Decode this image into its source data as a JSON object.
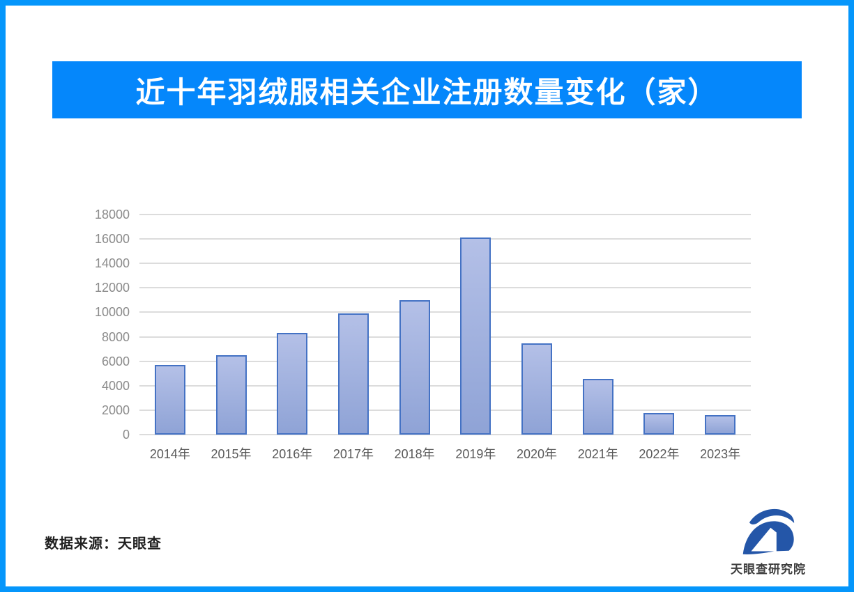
{
  "frame": {
    "border_color": "#0596fb"
  },
  "header": {
    "title": "近十年羽绒服相关企业注册数量变化（家）",
    "bg_color": "#0587fb",
    "text_color": "#ffffff"
  },
  "chart_data": {
    "type": "bar",
    "title": "近十年羽绒服相关企业注册数量变化（家）",
    "categories": [
      "2014年",
      "2015年",
      "2016年",
      "2017年",
      "2018年",
      "2019年",
      "2020年",
      "2021年",
      "2022年",
      "2023年"
    ],
    "values": [
      5700,
      6500,
      8300,
      9900,
      11000,
      16100,
      7450,
      4550,
      1750,
      1600
    ],
    "xlabel": "",
    "ylabel": "",
    "ylim": [
      0,
      18000
    ],
    "yticks": [
      0,
      2000,
      4000,
      6000,
      8000,
      10000,
      12000,
      14000,
      16000,
      18000
    ],
    "grid": true,
    "legend": false,
    "bar_border_color": "#4472c4",
    "bar_fill_top": "#b4c0e7",
    "bar_fill_bottom": "#8fa3d6",
    "gridline_color": "#dcdcdc",
    "ytick_color": "#8c8c8c",
    "xtick_color": "#595959"
  },
  "footer": {
    "source_label": "数据来源：天眼查"
  },
  "brand": {
    "logo_name": "tianyancha-eye-logo",
    "text": "天眼查研究院",
    "logo_color": "#2456a8"
  }
}
